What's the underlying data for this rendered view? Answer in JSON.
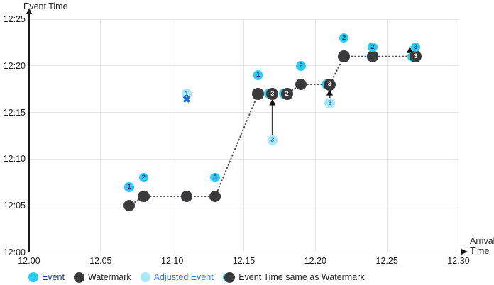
{
  "labels": {
    "y_axis_title": "Event Time",
    "x_axis_title_line1": "Arrival",
    "x_axis_title_line2": "Time"
  },
  "colors": {
    "event": "#29cdf1",
    "event_number": "#123a7d",
    "watermark": "#3a3a3c",
    "adjusted_event": "#aae8fb",
    "adjusted_number": "#2e7ed3",
    "dropped_x": "#1b6cc2",
    "dotted_line": "#4d4d4d",
    "arrow": "#3c3c3c",
    "gridline": "#e5e5e5",
    "axis": "#1a1a1a",
    "legend_event_text": "#1c3e8f",
    "legend_adjusted_text": "#2e7ed3",
    "legend_dark_text": "#1f1f1f"
  },
  "legend": [
    {
      "label": "Event",
      "swatch": "event",
      "text_color": "#1c3e8f"
    },
    {
      "label": "Watermark",
      "swatch": "watermark",
      "text_color": "#1f1f1f"
    },
    {
      "label": "Adjusted Event",
      "swatch": "adjusted",
      "text_color": "#2e7ed3"
    },
    {
      "label": "Event Time same as Watermark",
      "swatch": "half",
      "text_color": "#1f1f1f"
    }
  ],
  "chart_data": {
    "type": "scatter",
    "title": "",
    "xlabel": "Arrival Time",
    "ylabel": "Event Time",
    "x_ticks": [
      {
        "label": "12.00",
        "v": 12.0
      },
      {
        "label": "12.05",
        "v": 12.05
      },
      {
        "label": "12.10",
        "v": 12.1
      },
      {
        "label": "12.15",
        "v": 12.15
      },
      {
        "label": "12.20",
        "v": 12.2
      },
      {
        "label": "12.25",
        "v": 12.25
      },
      {
        "label": "12.30",
        "v": 12.3
      }
    ],
    "y_ticks": [
      {
        "label": "12:00",
        "m": 0
      },
      {
        "label": "12:05",
        "m": 5
      },
      {
        "label": "12:10",
        "m": 10
      },
      {
        "label": "12:15",
        "m": 15
      },
      {
        "label": "12:20",
        "m": 20
      },
      {
        "label": "12:25",
        "m": 25
      }
    ],
    "xlim": [
      12.0,
      12.3
    ],
    "ylim_minutes": [
      0,
      25
    ],
    "grid": true,
    "legend_position": "bottom",
    "events": [
      {
        "label": "1",
        "arrival": 12.07,
        "event_time": "12:07",
        "min": 7
      },
      {
        "label": "2",
        "arrival": 12.08,
        "event_time": "12:08",
        "min": 8
      },
      {
        "label": "3",
        "arrival": 12.13,
        "event_time": "12:08",
        "min": 8
      },
      {
        "label": "1",
        "arrival": 12.16,
        "event_time": "12:19",
        "min": 19
      },
      {
        "label": "2",
        "arrival": 12.19,
        "event_time": "12:20",
        "min": 20
      },
      {
        "label": "2",
        "arrival": 12.22,
        "event_time": "12:23",
        "min": 23
      },
      {
        "label": "2",
        "arrival": 12.24,
        "event_time": "12:22",
        "min": 22
      },
      {
        "label": "3",
        "arrival": 12.27,
        "event_time": "12:22",
        "min": 22
      }
    ],
    "adjusted_events": [
      {
        "label": "1",
        "arrival": 12.11,
        "event_time": "12:17",
        "min": 17,
        "dropped": true
      },
      {
        "label": "3",
        "arrival": 12.17,
        "event_time": "12:12",
        "min": 12,
        "dropped": false
      },
      {
        "label": "3",
        "arrival": 12.21,
        "event_time": "12:16",
        "min": 16,
        "dropped": false
      }
    ],
    "watermarks": [
      {
        "arrival": 12.07,
        "value": "12:05",
        "min": 5
      },
      {
        "arrival": 12.08,
        "value": "12:06",
        "min": 6
      },
      {
        "arrival": 12.11,
        "value": "12:06",
        "min": 6
      },
      {
        "arrival": 12.13,
        "value": "12:06",
        "min": 6
      },
      {
        "arrival": 12.16,
        "value": "12:17",
        "min": 17
      },
      {
        "arrival": 12.19,
        "value": "12:18",
        "min": 18
      },
      {
        "arrival": 12.22,
        "value": "12:21",
        "min": 21
      },
      {
        "arrival": 12.24,
        "value": "12:21",
        "min": 21
      }
    ],
    "same_as_watermark": [
      {
        "label": "3",
        "arrival": 12.17,
        "event_time": "12:17",
        "min": 17
      },
      {
        "label": "2",
        "arrival": 12.18,
        "event_time": "12:17",
        "min": 17
      },
      {
        "label": "3",
        "arrival": 12.21,
        "event_time": "12:18",
        "min": 18
      },
      {
        "label": "3",
        "arrival": 12.27,
        "event_time": "12:21",
        "min": 21
      }
    ],
    "watermark_path": [
      [
        12.07,
        5
      ],
      [
        12.08,
        6
      ],
      [
        12.13,
        6
      ],
      [
        12.16,
        17
      ],
      [
        12.18,
        17
      ],
      [
        12.19,
        18
      ],
      [
        12.21,
        18
      ],
      [
        12.22,
        21
      ],
      [
        12.27,
        21
      ]
    ],
    "adjustment_arrows": [
      {
        "x": 12.17,
        "from_min": 12.55,
        "to_min": 16.3
      },
      {
        "x": 12.21,
        "from_min": 16.55,
        "to_min": 17.35
      },
      {
        "x": 12.266,
        "from_min": 21.05,
        "to_min": 21.9
      }
    ],
    "dropped_x_marks": [
      {
        "x": 12.11,
        "min": 16.4
      }
    ]
  }
}
